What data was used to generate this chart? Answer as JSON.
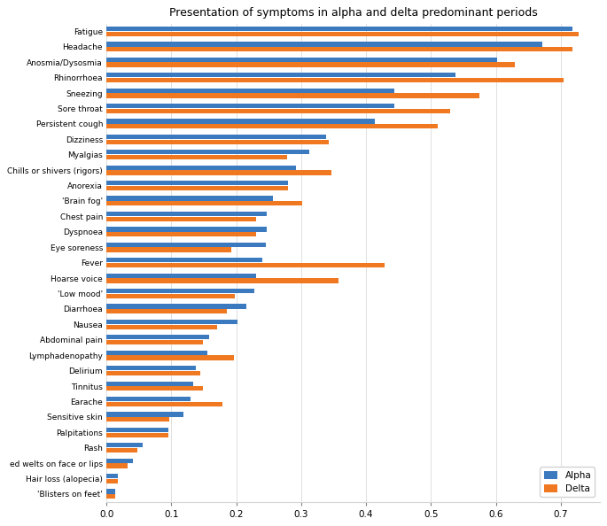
{
  "title": "Presentation of symptoms in alpha and delta predominant periods",
  "categories": [
    "Fatigue",
    "Headache",
    "Anosmia/Dysosmia",
    "Rhinorrhoea",
    "Sneezing",
    "Sore throat",
    "Persistent cough",
    "Dizziness",
    "Myalgias",
    "Chills or shivers (rigors)",
    "Anorexia",
    "'Brain fog'",
    "Chest pain",
    "Dyspnoea",
    "Eye soreness",
    "Fever",
    "Hoarse voice",
    "'Low mood'",
    "Diarrhoea",
    "Nausea",
    "Abdominal pain",
    "Lymphadenopathy",
    "Delirium",
    "Tinnitus",
    "Earache",
    "Sensitive skin",
    "Palpitations",
    "Rash",
    "ed welts on face or lips",
    "Hair loss (alopecia)",
    "'Blisters on feet'"
  ],
  "alpha": [
    0.718,
    0.672,
    0.602,
    0.538,
    0.443,
    0.443,
    0.413,
    0.338,
    0.313,
    0.292,
    0.28,
    0.257,
    0.247,
    0.247,
    0.245,
    0.24,
    0.23,
    0.228,
    0.215,
    0.202,
    0.158,
    0.155,
    0.138,
    0.133,
    0.13,
    0.118,
    0.095,
    0.055,
    0.04,
    0.018,
    0.013
  ],
  "delta": [
    0.728,
    0.718,
    0.63,
    0.705,
    0.575,
    0.53,
    0.51,
    0.342,
    0.278,
    0.347,
    0.28,
    0.302,
    0.23,
    0.23,
    0.192,
    0.428,
    0.357,
    0.198,
    0.185,
    0.17,
    0.148,
    0.197,
    0.145,
    0.148,
    0.178,
    0.097,
    0.095,
    0.047,
    0.032,
    0.018,
    0.013
  ],
  "alpha_color": "#3c7abf",
  "delta_color": "#f07820",
  "bar_height": 0.3,
  "xlim": [
    0.0,
    0.76
  ],
  "xticks": [
    0.0,
    0.1,
    0.2,
    0.3,
    0.4,
    0.5,
    0.6,
    0.7
  ],
  "figsize": [
    6.85,
    5.94
  ],
  "dpi": 100,
  "ylabel_fontsize": 6.5,
  "xlabel_fontsize": 7.5,
  "title_fontsize": 9
}
